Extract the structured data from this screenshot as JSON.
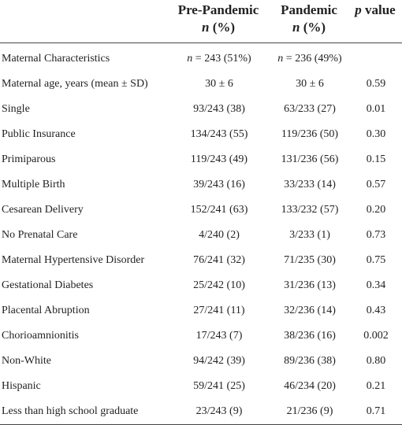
{
  "table": {
    "header": [
      {
        "line1": "Pre-Pandemic",
        "line2": "n (%)"
      },
      {
        "line1": "Pandemic",
        "line2": "n (%)"
      },
      {
        "line1": "p value"
      }
    ],
    "rows": [
      [
        "Maternal Characteristics",
        "n = 243 (51%)",
        "n = 236 (49%)",
        null
      ],
      [
        "Maternal age, years (mean ± SD)",
        "30 ± 6",
        "30 ± 6",
        "0.59"
      ],
      [
        "Single",
        "93/243 (38)",
        "63/233 (27)",
        "0.01"
      ],
      [
        "Public Insurance",
        "134/243 (55)",
        "119/236 (50)",
        "0.30"
      ],
      [
        "Primiparous",
        "119/243 (49)",
        "131/236 (56)",
        "0.15"
      ],
      [
        "Multiple Birth",
        "39/243 (16)",
        "33/233 (14)",
        "0.57"
      ],
      [
        "Cesarean Delivery",
        "152/241 (63)",
        "133/232 (57)",
        "0.20"
      ],
      [
        "No Prenatal Care",
        "4/240 (2)",
        "3/233 (1)",
        "0.73"
      ],
      [
        "Maternal Hypertensive Disorder",
        "76/241 (32)",
        "71/235 (30)",
        "0.75"
      ],
      [
        "Gestational Diabetes",
        "25/242 (10)",
        "31/236 (13)",
        "0.34"
      ],
      [
        "Placental Abruption",
        "27/241 (11)",
        "32/236 (14)",
        "0.43"
      ],
      [
        "Chorioamnionitis",
        "17/243 (7)",
        "38/236 (16)",
        "0.002"
      ],
      [
        "Non-White",
        "94/242 (39)",
        "89/236 (38)",
        "0.80"
      ],
      [
        "Hispanic",
        "59/241 (25)",
        "46/234 (20)",
        "0.21"
      ],
      [
        "Less than high school graduate",
        "23/243 (9)",
        "21/236 (9)",
        "0.71"
      ]
    ]
  }
}
